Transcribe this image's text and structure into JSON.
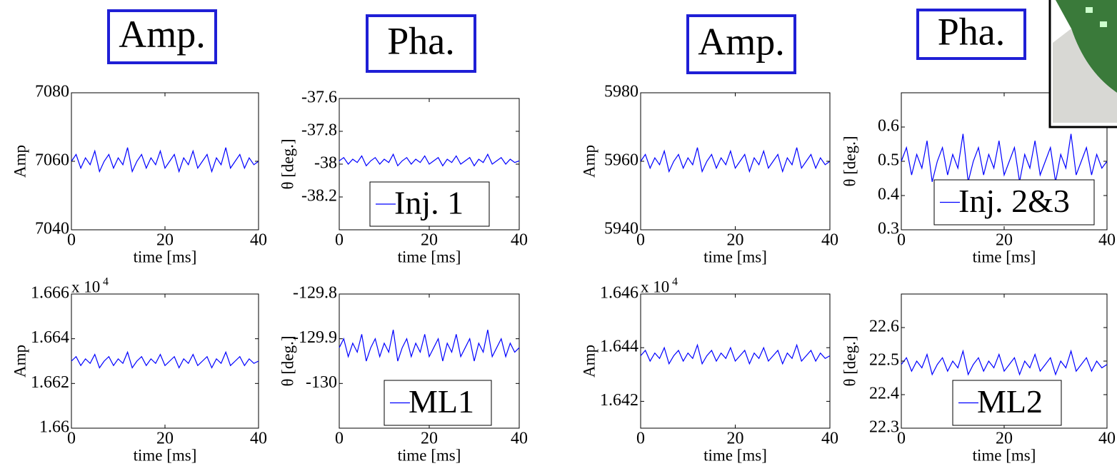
{
  "headers": [
    "Amp.",
    "Pha.",
    "Amp.",
    "Pha."
  ],
  "chart_data": [
    {
      "type": "line",
      "ylabel": "Amp",
      "xlabel": "time [ms]",
      "xlim": [
        0,
        40
      ],
      "xticks": [
        0,
        20,
        40
      ],
      "ylim": [
        7040,
        7080
      ],
      "yticks": [
        7040,
        7060,
        7080
      ],
      "x": [
        0,
        1,
        2,
        3,
        4,
        5,
        6,
        7,
        8,
        9,
        10,
        11,
        12,
        13,
        14,
        15,
        16,
        17,
        18,
        19,
        20,
        21,
        22,
        23,
        24,
        25,
        26,
        27,
        28,
        29,
        30,
        31,
        32,
        33,
        34,
        35,
        36,
        37,
        38,
        39,
        40
      ],
      "series": [
        {
          "color": "#0000ff",
          "values": [
            7060,
            7062,
            7058,
            7061,
            7059,
            7063,
            7057,
            7060,
            7062,
            7058,
            7061,
            7059,
            7064,
            7057,
            7060,
            7062,
            7058,
            7061,
            7059,
            7063,
            7058,
            7060,
            7062,
            7057,
            7061,
            7059,
            7063,
            7058,
            7060,
            7062,
            7057,
            7061,
            7059,
            7064,
            7058,
            7060,
            7062,
            7058,
            7061,
            7059,
            7060
          ]
        }
      ]
    },
    {
      "type": "line",
      "ylabel": "θ [deg.]",
      "xlabel": "time [ms]",
      "xlim": [
        0,
        40
      ],
      "xticks": [
        0,
        20,
        40
      ],
      "ylim": [
        -38.4,
        -37.6
      ],
      "yticks": [
        -38.2,
        -38,
        -37.8,
        -37.6
      ],
      "legend": "lower right",
      "x": [
        0,
        1,
        2,
        3,
        4,
        5,
        6,
        7,
        8,
        9,
        10,
        11,
        12,
        13,
        14,
        15,
        16,
        17,
        18,
        19,
        20,
        21,
        22,
        23,
        24,
        25,
        26,
        27,
        28,
        29,
        30,
        31,
        32,
        33,
        34,
        35,
        36,
        37,
        38,
        39,
        40
      ],
      "series": [
        {
          "name": "Inj. 1",
          "color": "#0000ff",
          "values": [
            -37.98,
            -37.96,
            -38,
            -37.97,
            -37.99,
            -37.95,
            -38.01,
            -37.98,
            -37.96,
            -38,
            -37.97,
            -37.99,
            -37.94,
            -38.01,
            -37.98,
            -37.96,
            -38,
            -37.97,
            -37.99,
            -37.95,
            -38,
            -37.98,
            -37.96,
            -38.01,
            -37.97,
            -37.99,
            -37.95,
            -38,
            -37.98,
            -37.96,
            -38.01,
            -37.97,
            -37.99,
            -37.94,
            -38,
            -37.98,
            -37.96,
            -38,
            -37.97,
            -37.99,
            -37.98
          ]
        }
      ]
    },
    {
      "type": "line",
      "ylabel": "Amp",
      "xlabel": "time [ms]",
      "xlim": [
        0,
        40
      ],
      "xticks": [
        0,
        20,
        40
      ],
      "ylim": [
        5940,
        5980
      ],
      "yticks": [
        5940,
        5960,
        5980
      ],
      "x": [
        0,
        1,
        2,
        3,
        4,
        5,
        6,
        7,
        8,
        9,
        10,
        11,
        12,
        13,
        14,
        15,
        16,
        17,
        18,
        19,
        20,
        21,
        22,
        23,
        24,
        25,
        26,
        27,
        28,
        29,
        30,
        31,
        32,
        33,
        34,
        35,
        36,
        37,
        38,
        39,
        40
      ],
      "series": [
        {
          "color": "#0000ff",
          "values": [
            5960,
            5962,
            5958,
            5961,
            5959,
            5963,
            5957,
            5960,
            5962,
            5958,
            5961,
            5959,
            5964,
            5957,
            5960,
            5962,
            5958,
            5961,
            5959,
            5963,
            5958,
            5960,
            5962,
            5957,
            5961,
            5959,
            5963,
            5958,
            5960,
            5962,
            5957,
            5961,
            5959,
            5964,
            5958,
            5960,
            5962,
            5958,
            5961,
            5959,
            5960
          ]
        }
      ]
    },
    {
      "type": "line",
      "ylabel": "θ [deg.]",
      "xlabel": "time [ms]",
      "xlim": [
        0,
        40
      ],
      "xticks": [
        0,
        20,
        40
      ],
      "ylim": [
        0.3,
        0.7
      ],
      "yticks": [
        0.3,
        0.4,
        0.5,
        0.6
      ],
      "legend": "lower right",
      "x": [
        0,
        1,
        2,
        3,
        4,
        5,
        6,
        7,
        8,
        9,
        10,
        11,
        12,
        13,
        14,
        15,
        16,
        17,
        18,
        19,
        20,
        21,
        22,
        23,
        24,
        25,
        26,
        27,
        28,
        29,
        30,
        31,
        32,
        33,
        34,
        35,
        36,
        37,
        38,
        39,
        40
      ],
      "series": [
        {
          "name": "Inj. 2&3",
          "color": "#0000ff",
          "values": [
            0.5,
            0.54,
            0.46,
            0.52,
            0.48,
            0.56,
            0.44,
            0.5,
            0.54,
            0.46,
            0.52,
            0.48,
            0.58,
            0.44,
            0.5,
            0.54,
            0.46,
            0.52,
            0.48,
            0.56,
            0.46,
            0.5,
            0.54,
            0.44,
            0.52,
            0.48,
            0.56,
            0.46,
            0.5,
            0.54,
            0.44,
            0.52,
            0.48,
            0.58,
            0.46,
            0.5,
            0.54,
            0.46,
            0.52,
            0.48,
            0.5
          ]
        }
      ]
    },
    {
      "type": "line",
      "ylabel": "Amp",
      "xlabel": "time [ms]",
      "y_scale_label": "x 10",
      "y_scale_exponent": "4",
      "xlim": [
        0,
        40
      ],
      "xticks": [
        0,
        20,
        40
      ],
      "ylim": [
        1.66,
        1.666
      ],
      "yticks": [
        1.66,
        1.662,
        1.664,
        1.666
      ],
      "x": [
        0,
        1,
        2,
        3,
        4,
        5,
        6,
        7,
        8,
        9,
        10,
        11,
        12,
        13,
        14,
        15,
        16,
        17,
        18,
        19,
        20,
        21,
        22,
        23,
        24,
        25,
        26,
        27,
        28,
        29,
        30,
        31,
        32,
        33,
        34,
        35,
        36,
        37,
        38,
        39,
        40
      ],
      "series": [
        {
          "color": "#0000ff",
          "values": [
            1.663,
            1.6632,
            1.6628,
            1.6631,
            1.6629,
            1.6633,
            1.6627,
            1.663,
            1.6632,
            1.6628,
            1.6631,
            1.6629,
            1.6634,
            1.6627,
            1.663,
            1.6632,
            1.6628,
            1.6631,
            1.6629,
            1.6633,
            1.6628,
            1.663,
            1.6632,
            1.6627,
            1.6631,
            1.6629,
            1.6633,
            1.6628,
            1.663,
            1.6632,
            1.6627,
            1.6631,
            1.6629,
            1.6634,
            1.6628,
            1.663,
            1.6632,
            1.6628,
            1.6631,
            1.6629,
            1.663
          ]
        }
      ]
    },
    {
      "type": "line",
      "ylabel": "θ [deg.]",
      "xlabel": "time [ms]",
      "xlim": [
        0,
        40
      ],
      "xticks": [
        0,
        20,
        40
      ],
      "ylim": [
        -130.1,
        -129.8
      ],
      "yticks": [
        -130,
        -129.9,
        -129.8
      ],
      "legend": "lower right",
      "x": [
        0,
        1,
        2,
        3,
        4,
        5,
        6,
        7,
        8,
        9,
        10,
        11,
        12,
        13,
        14,
        15,
        16,
        17,
        18,
        19,
        20,
        21,
        22,
        23,
        24,
        25,
        26,
        27,
        28,
        29,
        30,
        31,
        32,
        33,
        34,
        35,
        36,
        37,
        38,
        39,
        40
      ],
      "series": [
        {
          "name": "ML1",
          "color": "#0000ff",
          "values": [
            -129.92,
            -129.9,
            -129.94,
            -129.91,
            -129.93,
            -129.89,
            -129.95,
            -129.92,
            -129.9,
            -129.94,
            -129.91,
            -129.93,
            -129.88,
            -129.95,
            -129.92,
            -129.9,
            -129.94,
            -129.91,
            -129.93,
            -129.89,
            -129.94,
            -129.92,
            -129.9,
            -129.95,
            -129.91,
            -129.93,
            -129.89,
            -129.94,
            -129.92,
            -129.9,
            -129.95,
            -129.91,
            -129.93,
            -129.88,
            -129.94,
            -129.92,
            -129.9,
            -129.94,
            -129.91,
            -129.93,
            -129.92
          ]
        }
      ]
    },
    {
      "type": "line",
      "ylabel": "Amp",
      "xlabel": "time [ms]",
      "y_scale_label": "x 10",
      "y_scale_exponent": "4",
      "xlim": [
        0,
        40
      ],
      "xticks": [
        0,
        20,
        40
      ],
      "ylim": [
        1.641,
        1.646
      ],
      "yticks": [
        1.642,
        1.644,
        1.646
      ],
      "x": [
        0,
        1,
        2,
        3,
        4,
        5,
        6,
        7,
        8,
        9,
        10,
        11,
        12,
        13,
        14,
        15,
        16,
        17,
        18,
        19,
        20,
        21,
        22,
        23,
        24,
        25,
        26,
        27,
        28,
        29,
        30,
        31,
        32,
        33,
        34,
        35,
        36,
        37,
        38,
        39,
        40
      ],
      "series": [
        {
          "color": "#0000ff",
          "values": [
            1.6437,
            1.6439,
            1.6435,
            1.6438,
            1.6436,
            1.644,
            1.6434,
            1.6437,
            1.6439,
            1.6435,
            1.6438,
            1.6436,
            1.6441,
            1.6434,
            1.6437,
            1.6439,
            1.6435,
            1.6438,
            1.6436,
            1.644,
            1.6435,
            1.6437,
            1.6439,
            1.6434,
            1.6438,
            1.6436,
            1.644,
            1.6435,
            1.6437,
            1.6439,
            1.6434,
            1.6438,
            1.6436,
            1.6441,
            1.6435,
            1.6437,
            1.6439,
            1.6435,
            1.6438,
            1.6436,
            1.6437
          ]
        }
      ]
    },
    {
      "type": "line",
      "ylabel": "θ [deg.]",
      "xlabel": "time [ms]",
      "xlim": [
        0,
        40
      ],
      "xticks": [
        0,
        20,
        40
      ],
      "ylim": [
        22.3,
        22.7
      ],
      "yticks": [
        22.3,
        22.4,
        22.5,
        22.6
      ],
      "legend": "lower right",
      "x": [
        0,
        1,
        2,
        3,
        4,
        5,
        6,
        7,
        8,
        9,
        10,
        11,
        12,
        13,
        14,
        15,
        16,
        17,
        18,
        19,
        20,
        21,
        22,
        23,
        24,
        25,
        26,
        27,
        28,
        29,
        30,
        31,
        32,
        33,
        34,
        35,
        36,
        37,
        38,
        39,
        40
      ],
      "series": [
        {
          "name": "ML2",
          "color": "#0000ff",
          "values": [
            22.49,
            22.51,
            22.47,
            22.5,
            22.48,
            22.52,
            22.46,
            22.49,
            22.51,
            22.47,
            22.5,
            22.48,
            22.53,
            22.46,
            22.49,
            22.51,
            22.47,
            22.5,
            22.48,
            22.52,
            22.47,
            22.49,
            22.51,
            22.46,
            22.5,
            22.48,
            22.52,
            22.47,
            22.49,
            22.51,
            22.46,
            22.5,
            22.48,
            22.53,
            22.47,
            22.49,
            22.51,
            22.47,
            22.5,
            22.48,
            22.49
          ]
        }
      ]
    }
  ]
}
